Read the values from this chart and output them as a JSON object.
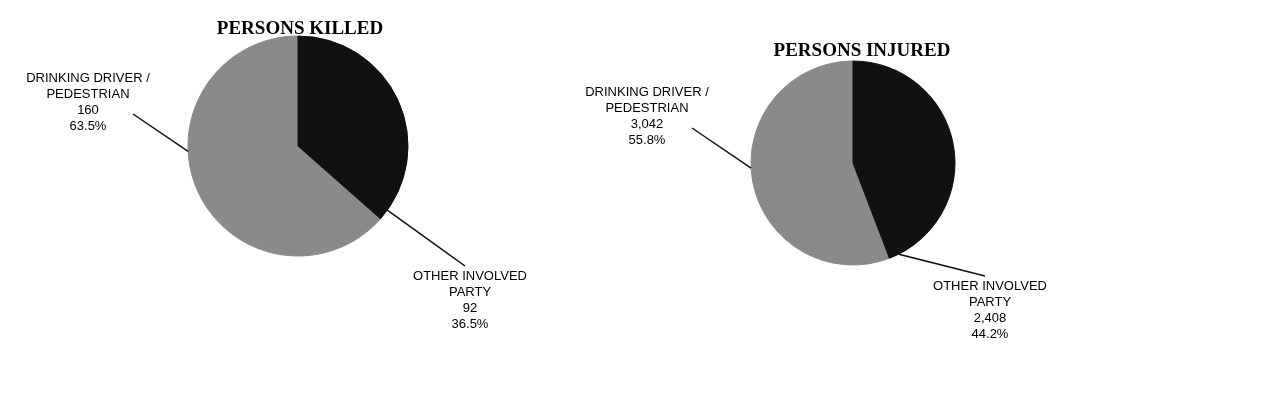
{
  "chart_data": [
    {
      "type": "pie",
      "title": "PERSONS KILLED",
      "categories": [
        "DRINKING DRIVER / PEDESTRIAN",
        "OTHER INVOLVED PARTY"
      ],
      "values": [
        160,
        92
      ],
      "value_labels": [
        "160\n63.5%",
        "92\n36.5%"
      ],
      "colors": [
        "#8a8a8a",
        "#111111"
      ]
    },
    {
      "type": "pie",
      "title": "PERSONS INJURED",
      "categories": [
        "DRINKING DRIVER / PEDESTRIAN",
        "OTHER INVOLVED PARTY"
      ],
      "values": [
        3042,
        2408
      ],
      "value_labels": [
        "3,042\n55.8%",
        "2,408\n44.2%"
      ],
      "colors": [
        "#8a8a8a",
        "#111111"
      ]
    }
  ]
}
